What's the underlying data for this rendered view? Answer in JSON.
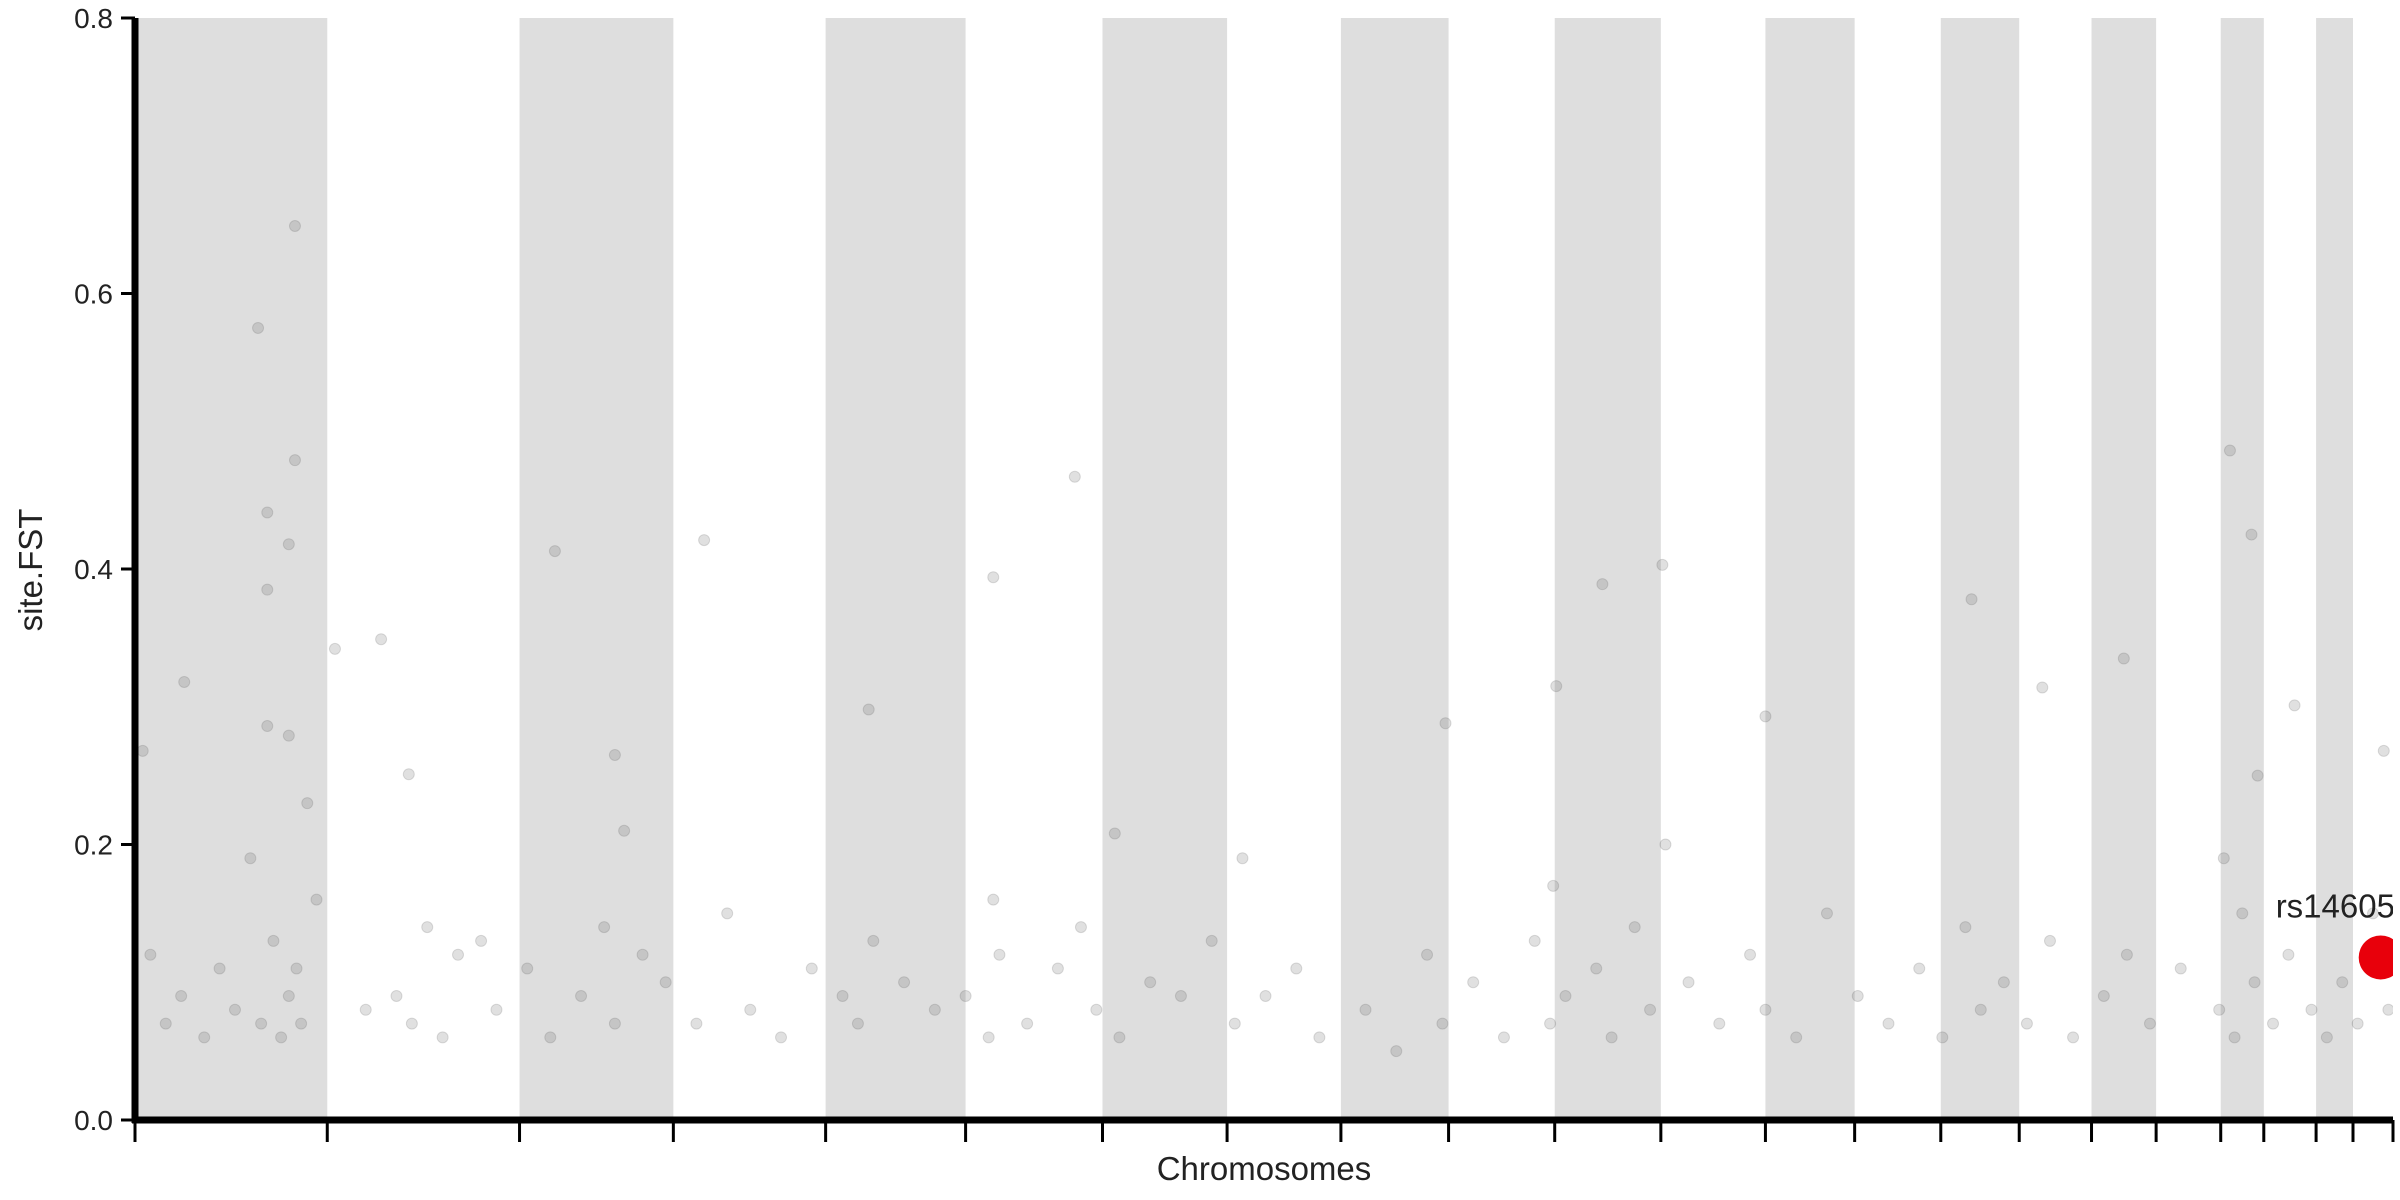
{
  "chart_data": {
    "type": "scatter",
    "x_label": "Chromosomes",
    "y_label": "site.FST",
    "xlim": [
      0,
      1468
    ],
    "ylim": [
      0,
      0.8
    ],
    "xticks": [
      0,
      125,
      250,
      350,
      449,
      540,
      629,
      710,
      784,
      854,
      923,
      992,
      1060,
      1118,
      1174,
      1225,
      1272,
      1314,
      1356,
      1384,
      1418,
      1442,
      1468
    ],
    "yticks": [
      {
        "value": 0,
        "label": "0.0"
      },
      0.2,
      0.4,
      0.6,
      0.8
    ],
    "alternate_shading": true,
    "shade_color": "#dedede",
    "point_color": "#555555",
    "point_opacity": 0.18,
    "x": [
      80,
      104,
      104,
      86,
      100,
      86,
      86,
      100,
      32,
      130,
      160,
      273,
      370,
      611,
      558,
      477,
      954,
      993,
      1362,
      1376,
      1194,
      1293,
      1404,
      924,
      178,
      312,
      852,
      1060,
      1240,
      1462,
      637,
      5,
      10,
      20,
      30,
      45,
      55,
      65,
      75,
      82,
      90,
      95,
      100,
      105,
      108,
      112,
      118,
      150,
      170,
      180,
      190,
      200,
      210,
      225,
      235,
      255,
      270,
      290,
      305,
      312,
      318,
      330,
      345,
      365,
      385,
      400,
      420,
      440,
      460,
      470,
      480,
      500,
      520,
      540,
      555,
      558,
      562,
      580,
      600,
      615,
      625,
      640,
      660,
      680,
      700,
      715,
      720,
      735,
      755,
      770,
      800,
      820,
      840,
      850,
      870,
      890,
      910,
      920,
      922,
      930,
      950,
      960,
      975,
      985,
      995,
      1010,
      1030,
      1050,
      1060,
      1080,
      1100,
      1120,
      1140,
      1160,
      1175,
      1190,
      1200,
      1215,
      1230,
      1245,
      1260,
      1280,
      1295,
      1310,
      1330,
      1355,
      1358,
      1365,
      1370,
      1378,
      1380,
      1390,
      1400,
      1415,
      1425,
      1435,
      1445,
      1455,
      1465
    ],
    "values": [
      0.575,
      0.649,
      0.479,
      0.441,
      0.418,
      0.385,
      0.286,
      0.279,
      0.318,
      0.342,
      0.349,
      0.413,
      0.421,
      0.467,
      0.394,
      0.298,
      0.389,
      0.403,
      0.486,
      0.425,
      0.378,
      0.335,
      0.301,
      0.315,
      0.251,
      0.265,
      0.288,
      0.293,
      0.314,
      0.268,
      0.208,
      0.268,
      0.12,
      0.07,
      0.09,
      0.06,
      0.11,
      0.08,
      0.19,
      0.07,
      0.13,
      0.06,
      0.09,
      0.11,
      0.07,
      0.23,
      0.16,
      0.08,
      0.09,
      0.07,
      0.14,
      0.06,
      0.12,
      0.13,
      0.08,
      0.11,
      0.06,
      0.09,
      0.14,
      0.07,
      0.21,
      0.12,
      0.1,
      0.07,
      0.15,
      0.08,
      0.06,
      0.11,
      0.09,
      0.07,
      0.13,
      0.1,
      0.08,
      0.09,
      0.06,
      0.16,
      0.12,
      0.07,
      0.11,
      0.14,
      0.08,
      0.06,
      0.1,
      0.09,
      0.13,
      0.07,
      0.19,
      0.09,
      0.11,
      0.06,
      0.08,
      0.05,
      0.12,
      0.07,
      0.1,
      0.06,
      0.13,
      0.07,
      0.17,
      0.09,
      0.11,
      0.06,
      0.14,
      0.08,
      0.2,
      0.1,
      0.07,
      0.12,
      0.08,
      0.06,
      0.15,
      0.09,
      0.07,
      0.11,
      0.06,
      0.14,
      0.08,
      0.1,
      0.07,
      0.13,
      0.06,
      0.09,
      0.12,
      0.07,
      0.11,
      0.08,
      0.19,
      0.06,
      0.15,
      0.1,
      0.25,
      0.07,
      0.12,
      0.08,
      0.06,
      0.1,
      0.07,
      0.15,
      0.08
    ],
    "highlight": {
      "label": "rs14605",
      "x": 1460,
      "value": 0.118,
      "color": "#e8000b"
    }
  }
}
